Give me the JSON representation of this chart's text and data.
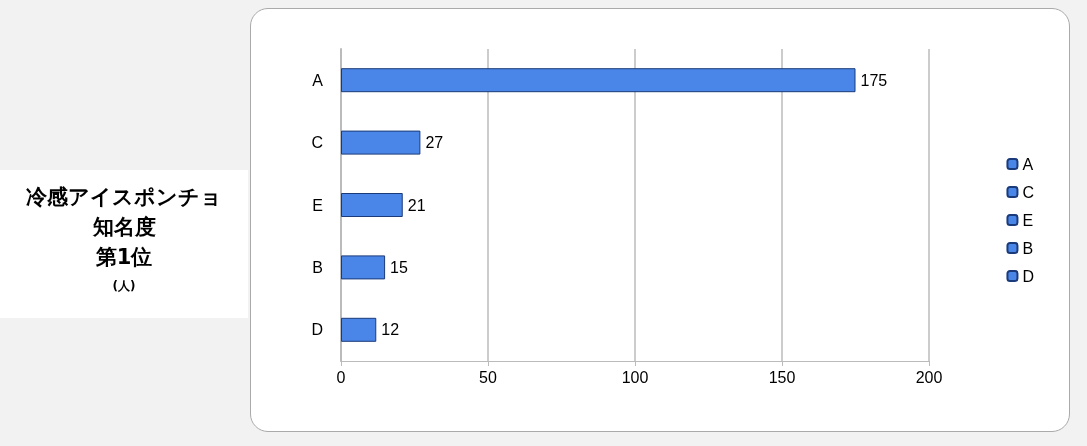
{
  "chart_data": {
    "type": "bar",
    "orientation": "horizontal",
    "stacked": true,
    "title": "冷感アイスポンチョ",
    "annotations": [
      "知名度",
      "第1位",
      "(人)"
    ],
    "categories": [
      "A",
      "C",
      "E",
      "B",
      "D"
    ],
    "series": [
      {
        "name": "A",
        "color": "#4a86e8",
        "values": [
          175,
          null,
          null,
          null,
          null
        ]
      },
      {
        "name": "C",
        "color": "#4a86e8",
        "values": [
          null,
          27,
          null,
          null,
          null
        ]
      },
      {
        "name": "E",
        "color": "#4a86e8",
        "values": [
          null,
          null,
          21,
          null,
          null
        ]
      },
      {
        "name": "B",
        "color": "#4a86e8",
        "values": [
          null,
          null,
          null,
          15,
          null
        ]
      },
      {
        "name": "D",
        "color": "#4a86e8",
        "values": [
          null,
          null,
          null,
          null,
          12
        ]
      }
    ],
    "xlim": [
      0,
      200
    ],
    "xticks": [
      0,
      50,
      100,
      150,
      200
    ],
    "grid": "x",
    "legend": "right",
    "data_labels": true
  }
}
